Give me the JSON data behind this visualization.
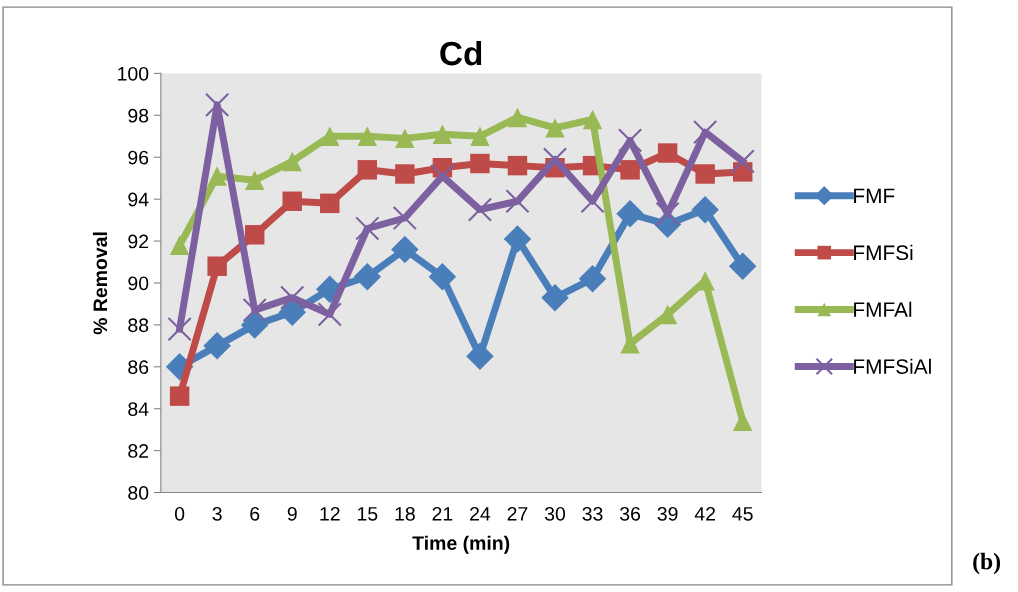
{
  "chart_data": {
    "type": "line",
    "title": "Cd",
    "xlabel": "Time (min)",
    "ylabel": "% Removal",
    "categories": [
      "0",
      "3",
      "6",
      "9",
      "12",
      "15",
      "18",
      "21",
      "24",
      "27",
      "30",
      "33",
      "36",
      "39",
      "42",
      "45"
    ],
    "ylim": [
      80,
      100
    ],
    "yticks": [
      80,
      82,
      84,
      86,
      88,
      90,
      92,
      94,
      96,
      98,
      100
    ],
    "grid": false,
    "legend": "right",
    "series": [
      {
        "name": "FMF",
        "color": "#4a7ebb",
        "marker": "diamond",
        "values": [
          86.0,
          87.0,
          88.0,
          88.6,
          89.7,
          90.3,
          91.6,
          90.3,
          86.5,
          92.1,
          89.3,
          90.2,
          93.3,
          92.8,
          93.5,
          90.8
        ]
      },
      {
        "name": "FMFSi",
        "color": "#be4b48",
        "marker": "square",
        "values": [
          84.6,
          90.8,
          92.3,
          93.9,
          93.8,
          95.4,
          95.2,
          95.5,
          95.7,
          95.6,
          95.5,
          95.6,
          95.4,
          96.2,
          95.2,
          95.3
        ]
      },
      {
        "name": "FMFAl",
        "color": "#98b954",
        "marker": "triangle",
        "values": [
          91.8,
          95.1,
          94.9,
          95.8,
          97.0,
          97.0,
          96.9,
          97.1,
          97.0,
          97.9,
          97.4,
          97.8,
          87.1,
          88.5,
          90.1,
          83.4
        ]
      },
      {
        "name": "FMFSiAl",
        "color": "#7d60a0",
        "marker": "cross",
        "values": [
          87.8,
          98.5,
          88.7,
          89.3,
          88.5,
          92.6,
          93.1,
          95.1,
          93.5,
          93.9,
          95.9,
          93.9,
          96.8,
          93.3,
          97.2,
          95.8
        ]
      }
    ],
    "annotations": [
      "(b)"
    ]
  }
}
